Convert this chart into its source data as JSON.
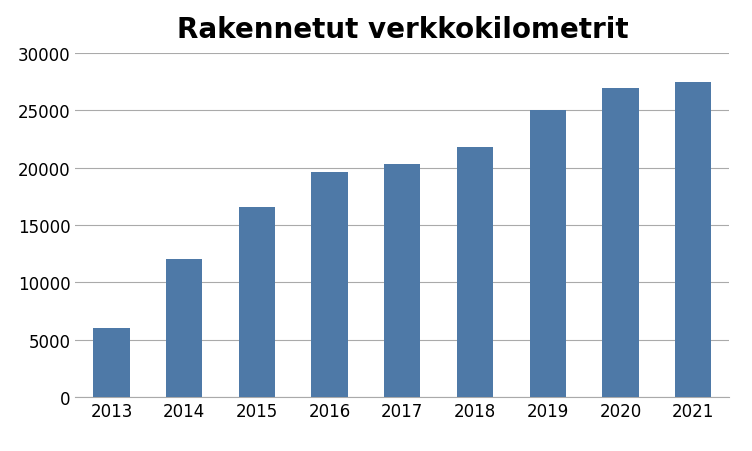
{
  "title": "Rakennetut verkkokilometrit",
  "categories": [
    "2013",
    "2014",
    "2015",
    "2016",
    "2017",
    "2018",
    "2019",
    "2020",
    "2021"
  ],
  "values": [
    5977,
    12000,
    16600,
    19600,
    20300,
    21800,
    25000,
    27000,
    27500
  ],
  "bar_color": "#4e79a7",
  "ylim": [
    0,
    30000
  ],
  "yticks": [
    0,
    5000,
    10000,
    15000,
    20000,
    25000,
    30000
  ],
  "title_fontsize": 20,
  "tick_fontsize": 12,
  "background_color": "#ffffff",
  "grid_color": "#aaaaaa",
  "bar_width": 0.5
}
